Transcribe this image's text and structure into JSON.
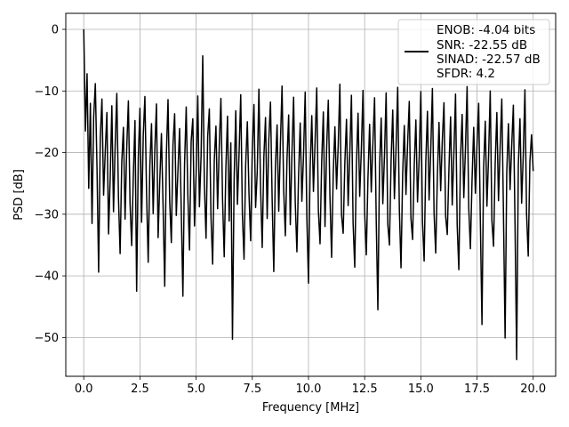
{
  "chart_data": {
    "type": "line",
    "xlabel": "Frequency [MHz]",
    "ylabel": "PSD [dB]",
    "xlim": [
      -0.8,
      21.0
    ],
    "ylim": [
      -56.3,
      2.6
    ],
    "xticks": [
      0.0,
      2.5,
      5.0,
      7.5,
      10.0,
      12.5,
      15.0,
      17.5,
      20.0
    ],
    "xtick_labels": [
      "0.0",
      "2.5",
      "5.0",
      "7.5",
      "10.0",
      "12.5",
      "15.0",
      "17.5",
      "20.0"
    ],
    "yticks": [
      0,
      -10,
      -20,
      -30,
      -40,
      -50
    ],
    "ytick_labels": [
      "0",
      "−10",
      "−20",
      "−30",
      "−40",
      "−50"
    ],
    "grid": true,
    "legend_position": "top-right",
    "series": [
      {
        "name": "ENOB: -4.04 bits\nSNR: -22.55 dB\nSINAD: -22.57 dB\nSFDR: 4.2",
        "legend_lines": [
          "ENOB: -4.04 bits",
          "SNR: -22.55 dB",
          "SINAD: -22.57 dB",
          "SFDR: 4.2"
        ],
        "color": "#000000",
        "x_start": 0.0,
        "x_end": 20.0,
        "values": [
          0.0,
          -16.5,
          -7.2,
          -25.8,
          -12.0,
          -31.5,
          -14.2,
          -8.8,
          -22.4,
          -39.4,
          -17.6,
          -11.3,
          -26.9,
          -19.8,
          -13.5,
          -33.2,
          -24.0,
          -12.4,
          -29.6,
          -18.9,
          -10.4,
          -27.3,
          -36.4,
          -21.5,
          -15.9,
          -30.8,
          -19.3,
          -11.6,
          -28.2,
          -35.1,
          -23.7,
          -14.8,
          -42.5,
          -20.9,
          -12.8,
          -31.3,
          -17.2,
          -10.9,
          -26.5,
          -37.8,
          -22.1,
          -15.3,
          -29.9,
          -19.6,
          -12.1,
          -33.8,
          -24.6,
          -16.9,
          -28.7,
          -41.7,
          -20.3,
          -11.4,
          -27.8,
          -34.6,
          -18.7,
          -13.7,
          -30.2,
          -22.9,
          -16.1,
          -29.3,
          -43.3,
          -21.8,
          -12.6,
          -27.0,
          -35.8,
          -18.1,
          -14.5,
          -31.9,
          -23.4,
          -10.8,
          -28.8,
          -20.6,
          -4.3,
          -25.2,
          -33.9,
          -17.4,
          -12.9,
          -30.5,
          -38.1,
          -21.2,
          -15.7,
          -29.1,
          -19.0,
          -11.2,
          -27.6,
          -36.9,
          -22.6,
          -14.1,
          -31.1,
          -18.4,
          -50.3,
          -24.3,
          -13.2,
          -28.4,
          -20.0,
          -10.6,
          -30.0,
          -37.3,
          -21.9,
          -15.0,
          -26.7,
          -34.3,
          -19.4,
          -12.2,
          -28.9,
          -23.1,
          -9.7,
          -25.6,
          -35.4,
          -20.7,
          -14.3,
          -30.7,
          -17.8,
          -11.8,
          -27.4,
          -39.3,
          -22.3,
          -15.5,
          -29.5,
          -18.6,
          -9.2,
          -26.1,
          -33.5,
          -21.1,
          -13.9,
          -31.7,
          -19.9,
          -11.0,
          -28.1,
          -36.1,
          -23.8,
          -15.2,
          -27.9,
          -20.4,
          -10.2,
          -30.4,
          -41.2,
          -22.7,
          -14.0,
          -26.3,
          -18.2,
          -9.5,
          -29.4,
          -34.8,
          -21.4,
          -13.4,
          -32.0,
          -19.1,
          -11.5,
          -27.2,
          -37.0,
          -23.3,
          -15.8,
          -25.9,
          -18.8,
          -8.9,
          -30.1,
          -33.1,
          -21.7,
          -14.6,
          -28.6,
          -20.2,
          -10.7,
          -31.4,
          -38.6,
          -22.0,
          -13.6,
          -27.1,
          -19.5,
          -9.9,
          -29.7,
          -36.6,
          -24.1,
          -15.4,
          -26.4,
          -18.3,
          -11.1,
          -30.9,
          -45.5,
          -22.4,
          -14.4,
          -28.3,
          -20.5,
          -10.3,
          -31.6,
          -35.0,
          -21.3,
          -13.1,
          -27.5,
          -19.2,
          -9.4,
          -29.2,
          -38.7,
          -23.5,
          -15.6,
          -26.8,
          -18.5,
          -11.7,
          -30.6,
          -34.1,
          -22.2,
          -14.7,
          -28.0,
          -20.8,
          -10.1,
          -31.2,
          -37.6,
          -21.6,
          -13.3,
          -27.7,
          -19.7,
          -9.6,
          -29.8,
          -36.3,
          -23.9,
          -15.1,
          -26.2,
          -18.0,
          -11.9,
          -30.3,
          -33.3,
          -22.8,
          -14.2,
          -28.5,
          -20.1,
          -10.5,
          -31.8,
          -39.0,
          -21.0,
          -13.8,
          -27.3,
          -19.4,
          -9.3,
          -29.0,
          -35.6,
          -24.4,
          -15.9,
          -26.6,
          -18.7,
          -12.0,
          -30.8,
          -47.9,
          -22.5,
          -14.9,
          -28.7,
          -20.6,
          -10.0,
          -31.0,
          -35.2,
          -21.8,
          -13.5,
          -27.8,
          -19.0,
          -11.3,
          -29.6,
          -50.1,
          -23.2,
          -15.3,
          -26.0,
          -18.9,
          -12.3,
          -31.5,
          -53.6,
          -22.1,
          -14.5,
          -28.2,
          -20.3,
          -9.8,
          -30.0,
          -36.8,
          -21.5,
          -17.1,
          -23.0
        ]
      }
    ]
  }
}
